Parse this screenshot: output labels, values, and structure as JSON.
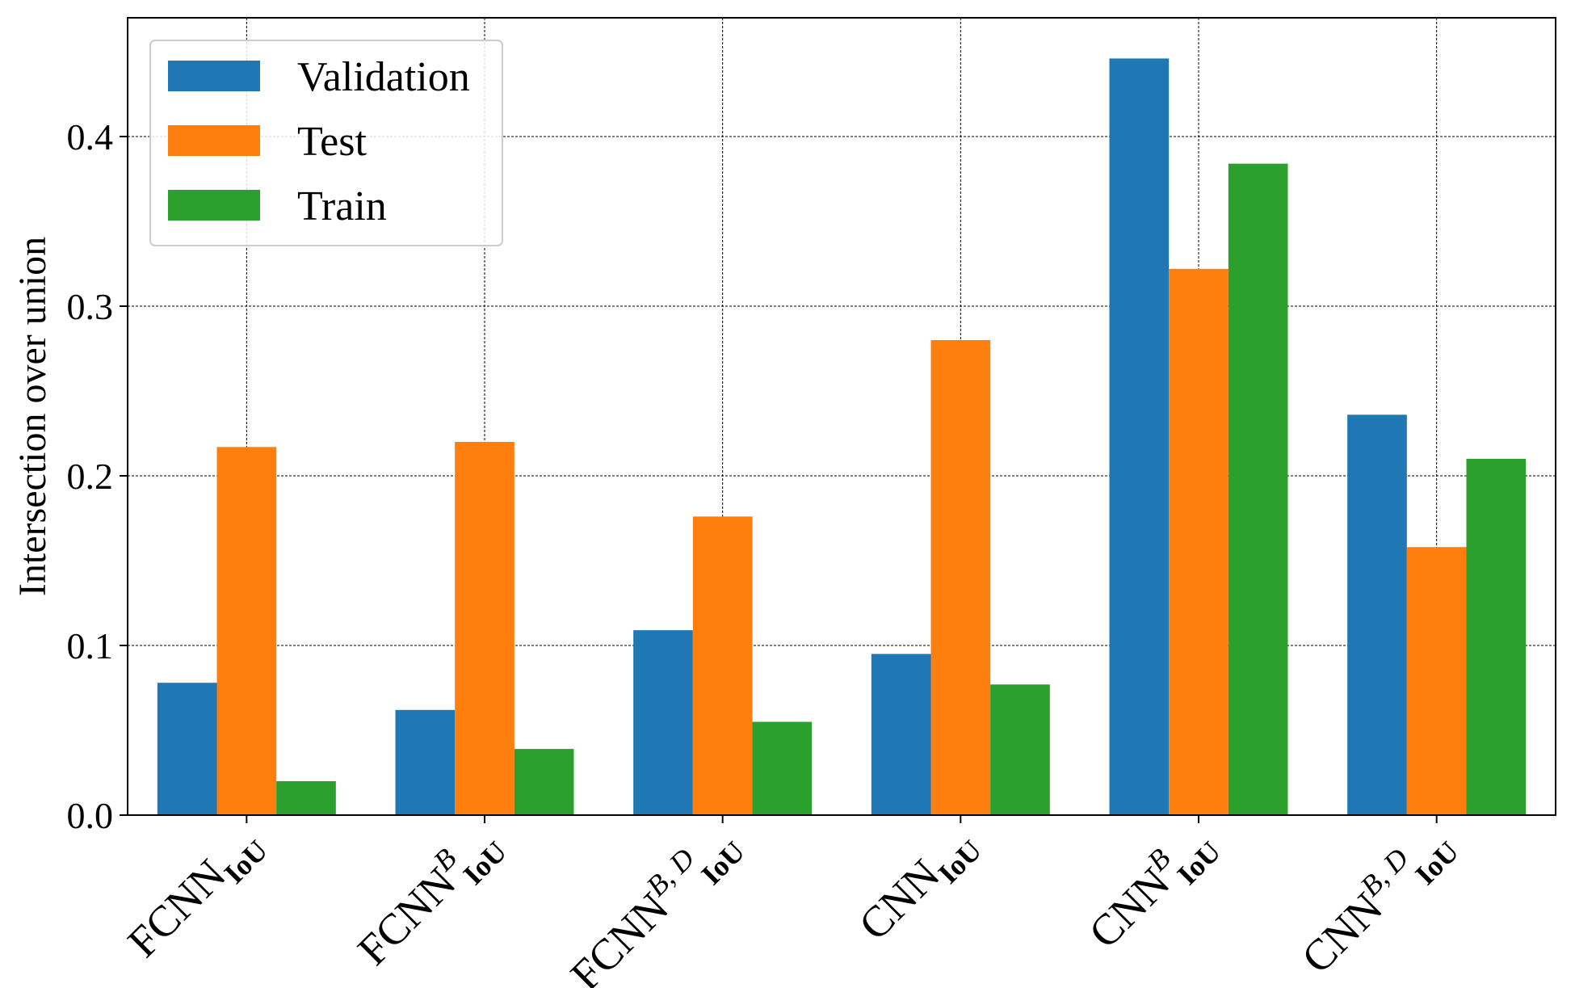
{
  "chart_data": {
    "type": "bar",
    "ylabel": "Intersection over union",
    "xlabel": "",
    "ylim": [
      0,
      0.47
    ],
    "yticks": [
      "0.0",
      "0.1",
      "0.2",
      "0.3",
      "0.4"
    ],
    "grid": true,
    "legend_position": "top-left",
    "categories": [
      {
        "base": "FCNN",
        "sub": "IoU",
        "sup": ""
      },
      {
        "base": "FCNN",
        "sub": "IoU",
        "sup": "B"
      },
      {
        "base": "FCNN",
        "sub": "IoU",
        "sup": "B, D"
      },
      {
        "base": "CNN",
        "sub": "IoU",
        "sup": ""
      },
      {
        "base": "CNN",
        "sub": "IoU",
        "sup": "B"
      },
      {
        "base": "CNN",
        "sub": "IoU",
        "sup": "B, D"
      }
    ],
    "series": [
      {
        "name": "Validation",
        "color": "#1f77b4",
        "values": [
          0.078,
          0.062,
          0.109,
          0.095,
          0.446,
          0.236
        ]
      },
      {
        "name": "Test",
        "color": "#ff7f0e",
        "values": [
          0.217,
          0.22,
          0.176,
          0.28,
          0.322,
          0.158
        ]
      },
      {
        "name": "Train",
        "color": "#2ca02c",
        "values": [
          0.02,
          0.039,
          0.055,
          0.077,
          0.384,
          0.21
        ]
      }
    ]
  }
}
